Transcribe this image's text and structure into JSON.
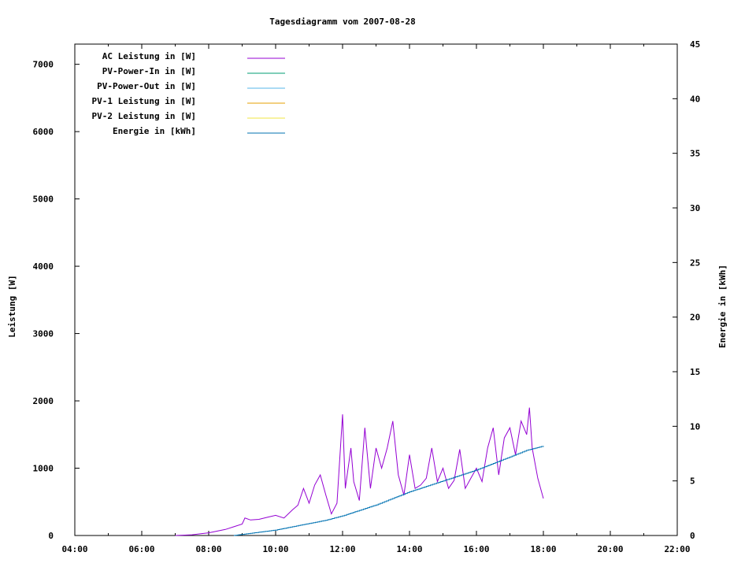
{
  "chart_data": {
    "type": "line",
    "title": "Tagesdiagramm vom 2007-08-28",
    "ylabel": "Leistung [W]",
    "y2label": "Energie in [kWh]",
    "xlim": [
      "04:00",
      "22:00"
    ],
    "ylim": [
      0,
      7300
    ],
    "y2lim": [
      0,
      45
    ],
    "x_ticks": [
      "04:00",
      "06:00",
      "08:00",
      "10:00",
      "12:00",
      "14:00",
      "16:00",
      "18:00",
      "20:00",
      "22:00"
    ],
    "y_ticks": [
      "0",
      "1000",
      "2000",
      "3000",
      "4000",
      "5000",
      "6000",
      "7000"
    ],
    "y2_ticks": [
      "0",
      "5",
      "10",
      "15",
      "20",
      "25",
      "30",
      "35",
      "40",
      "45"
    ],
    "legend_position": "top-left",
    "grid": false,
    "colors": {
      "ac": "#9400d3",
      "pv_in": "#009e73",
      "pv_out": "#56b4e9",
      "pv1": "#e69f00",
      "pv2": "#f0e442",
      "energy": "#0072b2"
    },
    "legend": [
      {
        "key": "ac",
        "label": "AC Leistung in [W]"
      },
      {
        "key": "pv_in",
        "label": "PV-Power-In in [W]"
      },
      {
        "key": "pv_out",
        "label": "PV-Power-Out in [W]"
      },
      {
        "key": "pv1",
        "label": "PV-1 Leistung in [W]"
      },
      {
        "key": "pv2",
        "label": "PV-2 Leistung in [W]"
      },
      {
        "key": "energy",
        "label": "Energie in [kWh]"
      }
    ],
    "series": [
      {
        "name": "AC Leistung in [W]",
        "axis": "left",
        "color_key": "ac",
        "points": [
          [
            "07:00",
            0
          ],
          [
            "07:30",
            10
          ],
          [
            "08:00",
            40
          ],
          [
            "08:30",
            90
          ],
          [
            "08:45",
            130
          ],
          [
            "09:00",
            170
          ],
          [
            "09:05",
            260
          ],
          [
            "09:15",
            230
          ],
          [
            "09:30",
            240
          ],
          [
            "09:45",
            270
          ],
          [
            "10:00",
            300
          ],
          [
            "10:15",
            260
          ],
          [
            "10:30",
            380
          ],
          [
            "10:40",
            450
          ],
          [
            "10:50",
            700
          ],
          [
            "11:00",
            480
          ],
          [
            "11:10",
            750
          ],
          [
            "11:20",
            900
          ],
          [
            "11:30",
            600
          ],
          [
            "11:40",
            320
          ],
          [
            "11:50",
            480
          ],
          [
            "12:00",
            1800
          ],
          [
            "12:05",
            700
          ],
          [
            "12:15",
            1300
          ],
          [
            "12:20",
            800
          ],
          [
            "12:30",
            520
          ],
          [
            "12:40",
            1600
          ],
          [
            "12:50",
            700
          ],
          [
            "13:00",
            1300
          ],
          [
            "13:10",
            1000
          ],
          [
            "13:20",
            1300
          ],
          [
            "13:30",
            1700
          ],
          [
            "13:40",
            900
          ],
          [
            "13:50",
            600
          ],
          [
            "14:00",
            1200
          ],
          [
            "14:10",
            700
          ],
          [
            "14:20",
            750
          ],
          [
            "14:30",
            850
          ],
          [
            "14:40",
            1300
          ],
          [
            "14:50",
            800
          ],
          [
            "15:00",
            1000
          ],
          [
            "15:10",
            700
          ],
          [
            "15:20",
            820
          ],
          [
            "15:30",
            1280
          ],
          [
            "15:40",
            700
          ],
          [
            "15:50",
            850
          ],
          [
            "16:00",
            1000
          ],
          [
            "16:10",
            800
          ],
          [
            "16:20",
            1300
          ],
          [
            "16:30",
            1600
          ],
          [
            "16:40",
            900
          ],
          [
            "16:50",
            1450
          ],
          [
            "17:00",
            1600
          ],
          [
            "17:10",
            1200
          ],
          [
            "17:20",
            1700
          ],
          [
            "17:30",
            1500
          ],
          [
            "17:35",
            1900
          ],
          [
            "17:40",
            1300
          ],
          [
            "17:50",
            850
          ],
          [
            "18:00",
            550
          ]
        ]
      },
      {
        "name": "Energie in [kWh]",
        "axis": "right",
        "color_key": "energy",
        "points": [
          [
            "08:45",
            0
          ],
          [
            "09:00",
            0.1
          ],
          [
            "09:30",
            0.3
          ],
          [
            "10:00",
            0.5
          ],
          [
            "10:30",
            0.8
          ],
          [
            "11:00",
            1.1
          ],
          [
            "11:30",
            1.4
          ],
          [
            "12:00",
            1.8
          ],
          [
            "12:30",
            2.3
          ],
          [
            "13:00",
            2.8
          ],
          [
            "13:30",
            3.4
          ],
          [
            "14:00",
            4.0
          ],
          [
            "14:30",
            4.5
          ],
          [
            "15:00",
            5.0
          ],
          [
            "15:30",
            5.5
          ],
          [
            "16:00",
            6.0
          ],
          [
            "16:30",
            6.6
          ],
          [
            "17:00",
            7.2
          ],
          [
            "17:30",
            7.8
          ],
          [
            "18:00",
            8.2
          ]
        ]
      }
    ]
  }
}
